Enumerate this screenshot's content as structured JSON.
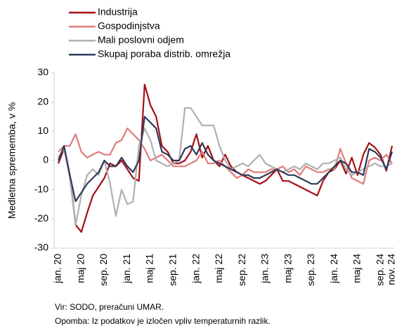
{
  "chart_data": {
    "type": "line",
    "y_label": "Medletna sprememba, v %",
    "source": "Vir: SODO, preračuni UMAR.",
    "note": "Opomba: Iz podatkov je izločen vpliv temperaturnih razlik.",
    "categories": [
      "jan. 20",
      null,
      null,
      null,
      "maj 20",
      null,
      null,
      null,
      "sep. 20",
      null,
      null,
      null,
      "jan. 21",
      null,
      null,
      null,
      "maj 21",
      null,
      null,
      null,
      "sep. 21",
      null,
      null,
      null,
      "jan. 22",
      null,
      null,
      null,
      "maj 22",
      null,
      null,
      null,
      "sep. 22",
      null,
      null,
      null,
      "jan. 23",
      null,
      null,
      null,
      "maj 23",
      null,
      null,
      null,
      "sep. 23",
      null,
      null,
      null,
      "jan. 24",
      null,
      null,
      null,
      "maj 24",
      null,
      null,
      null,
      "sep. 24",
      null,
      "nov. 24"
    ],
    "ylim": [
      -30,
      30
    ],
    "yticks": [
      -30,
      -20,
      -10,
      0,
      10,
      20,
      30
    ],
    "series": [
      {
        "name": "Industrija",
        "color": "#a50f15",
        "values": [
          -1,
          4,
          -5,
          -22,
          -24.5,
          -18,
          -12,
          -9,
          -6,
          -1,
          -2,
          0,
          -3,
          -6,
          -7,
          26,
          19,
          15,
          5,
          3,
          -1,
          -1,
          0,
          3,
          9,
          1,
          5,
          0,
          -2,
          2,
          -2,
          -4,
          -5,
          -6,
          -7,
          -8,
          -7,
          -5,
          -3,
          -7,
          -7,
          -8,
          -9,
          -10,
          -11,
          -12,
          -7,
          -4,
          -3,
          0,
          -4.5,
          1,
          -5,
          2,
          6,
          4.5,
          2,
          -3.5,
          5
        ]
      },
      {
        "name": "Gospodinjstva",
        "color": "#e07b7b",
        "values": [
          3,
          5,
          5,
          9,
          3,
          1,
          2,
          3,
          2,
          2,
          6,
          7,
          11,
          9,
          7,
          4,
          0,
          1,
          2,
          0,
          -2,
          -2,
          -2,
          -1,
          0,
          3,
          -1,
          -1,
          0,
          -2,
          -4,
          -6,
          -5,
          -3,
          -4,
          -4,
          -4,
          -3,
          -3,
          -2,
          -4,
          -3,
          -5,
          -2,
          -3,
          -4,
          -4,
          -3,
          -3,
          4,
          -1,
          -6,
          -7,
          -8,
          0,
          1,
          0,
          2,
          -1
        ]
      },
      {
        "name": "Mali poslovni odjem",
        "color": "#b0b0b0",
        "values": [
          1,
          4,
          -6,
          -22,
          -12,
          -5,
          -3,
          -5,
          0,
          -8,
          -19,
          -10,
          -15,
          -14,
          5,
          11,
          7,
          0,
          -1,
          -2,
          -1,
          0,
          18,
          18,
          15,
          12,
          12,
          12,
          5,
          0,
          -3,
          -2,
          -1,
          -2,
          0,
          2,
          -1,
          -2,
          -3,
          -4,
          -3,
          -2,
          -3,
          -1,
          -2,
          -3,
          -1,
          -1,
          0,
          1,
          -3,
          -5,
          -4,
          -3,
          -2,
          -1,
          -2,
          -2,
          -1
        ]
      },
      {
        "name": "Skupaj poraba distrib. omrežja",
        "color": "#2e3a59",
        "values": [
          0,
          5,
          -5,
          -14,
          -11,
          -8,
          -6,
          -4,
          0,
          -2,
          -2,
          1,
          -2,
          -4,
          0,
          15,
          13,
          11,
          3,
          2,
          0,
          0,
          4,
          5,
          2,
          6,
          2,
          0,
          -1,
          -2,
          -3,
          -4,
          -5,
          -5,
          -6,
          -6,
          -5,
          -4,
          -3,
          -4,
          -5,
          -5,
          -6,
          -7,
          -8,
          -8,
          -6,
          -4,
          -2,
          0,
          -1,
          -4,
          -4,
          -5,
          4,
          3,
          1,
          -3,
          3
        ]
      }
    ]
  }
}
